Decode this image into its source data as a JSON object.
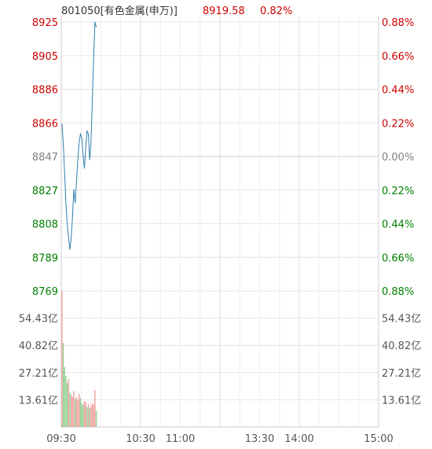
{
  "header": {
    "code_name": "801050[有色金属(申万)]",
    "price": "8919.58",
    "change_pct": "0.82%"
  },
  "colors": {
    "up": "#cc0000",
    "down": "#008000",
    "flat": "#808080",
    "price_line": "#2f7fb0",
    "grid": "#e6e6e6",
    "vol_up": "#f0a0a0",
    "vol_down": "#90d090"
  },
  "chart_data": {
    "type": "line",
    "price_axis": {
      "ticks": [
        "8925",
        "8905",
        "8886",
        "8866",
        "8847",
        "8827",
        "8808",
        "8789",
        "8769"
      ],
      "ylim": [
        8769,
        8925
      ],
      "base": 8847
    },
    "pct_axis": {
      "ticks": [
        "0.88%",
        "0.66%",
        "0.44%",
        "0.22%",
        "0.00%",
        "0.22%",
        "0.44%",
        "0.66%",
        "0.88%"
      ]
    },
    "volume_axis": {
      "ticks": [
        "54.43亿",
        "40.82亿",
        "27.21亿",
        "13.61亿"
      ],
      "ylim": [
        0,
        68.04
      ]
    },
    "time_axis": {
      "labels": [
        "09:30",
        "10:30",
        "11:00",
        "13:30",
        "14:00",
        "15:00"
      ],
      "total_minutes": 240,
      "label_minutes": [
        0,
        60,
        90,
        150,
        180,
        240
      ]
    },
    "price_series": [
      [
        0,
        8866
      ],
      [
        1,
        8855
      ],
      [
        2,
        8838
      ],
      [
        3,
        8820
      ],
      [
        4,
        8808
      ],
      [
        5,
        8800
      ],
      [
        6,
        8793
      ],
      [
        7,
        8800
      ],
      [
        8,
        8812
      ],
      [
        9,
        8828
      ],
      [
        10,
        8820
      ],
      [
        11,
        8832
      ],
      [
        12,
        8845
      ],
      [
        13,
        8855
      ],
      [
        14,
        8860
      ],
      [
        15,
        8858
      ],
      [
        16,
        8848
      ],
      [
        17,
        8840
      ],
      [
        18,
        8852
      ],
      [
        19,
        8862
      ],
      [
        20,
        8860
      ],
      [
        21,
        8845
      ],
      [
        22,
        8855
      ],
      [
        23,
        8880
      ],
      [
        24,
        8905
      ],
      [
        25,
        8925
      ],
      [
        26,
        8922
      ]
    ],
    "volume_series": [
      {
        "m": 0,
        "v": 68.0,
        "d": "up"
      },
      {
        "m": 1,
        "v": 42.0,
        "d": "down"
      },
      {
        "m": 2,
        "v": 30.0,
        "d": "down"
      },
      {
        "m": 3,
        "v": 25.5,
        "d": "down"
      },
      {
        "m": 4,
        "v": 22.0,
        "d": "down"
      },
      {
        "m": 5,
        "v": 24.0,
        "d": "up"
      },
      {
        "m": 6,
        "v": 17.0,
        "d": "down"
      },
      {
        "m": 7,
        "v": 16.0,
        "d": "up"
      },
      {
        "m": 8,
        "v": 15.0,
        "d": "up"
      },
      {
        "m": 9,
        "v": 18.0,
        "d": "up"
      },
      {
        "m": 10,
        "v": 14.0,
        "d": "down"
      },
      {
        "m": 11,
        "v": 15.0,
        "d": "up"
      },
      {
        "m": 12,
        "v": 13.5,
        "d": "up"
      },
      {
        "m": 13,
        "v": 16.5,
        "d": "up"
      },
      {
        "m": 14,
        "v": 14.5,
        "d": "down"
      },
      {
        "m": 15,
        "v": 12.0,
        "d": "down"
      },
      {
        "m": 16,
        "v": 11.0,
        "d": "down"
      },
      {
        "m": 17,
        "v": 13.0,
        "d": "up"
      },
      {
        "m": 18,
        "v": 12.5,
        "d": "up"
      },
      {
        "m": 19,
        "v": 10.0,
        "d": "down"
      },
      {
        "m": 20,
        "v": 11.5,
        "d": "up"
      },
      {
        "m": 21,
        "v": 9.5,
        "d": "down"
      },
      {
        "m": 22,
        "v": 10.5,
        "d": "up"
      },
      {
        "m": 23,
        "v": 12.0,
        "d": "up"
      },
      {
        "m": 24,
        "v": 11.0,
        "d": "up"
      },
      {
        "m": 25,
        "v": 18.5,
        "d": "up"
      },
      {
        "m": 26,
        "v": 8.0,
        "d": "down"
      }
    ]
  }
}
